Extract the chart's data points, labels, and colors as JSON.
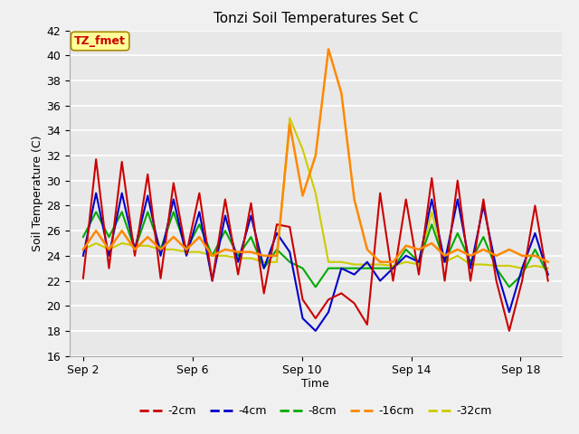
{
  "title": "Tonzi Soil Temperatures Set C",
  "xlabel": "Time",
  "ylabel": "Soil Temperature (C)",
  "ylim": [
    16,
    42
  ],
  "yticks": [
    16,
    18,
    20,
    22,
    24,
    26,
    28,
    30,
    32,
    34,
    36,
    38,
    40,
    42
  ],
  "x_tick_labels": [
    "Sep 2",
    "Sep 6",
    "Sep 10",
    "Sep 14",
    "Sep 18"
  ],
  "x_tick_positions": [
    0,
    4,
    8,
    12,
    16
  ],
  "xlim": [
    -0.5,
    17.5
  ],
  "colors": {
    "-2cm": "#cc0000",
    "-4cm": "#0000cc",
    "-8cm": "#00aa00",
    "-16cm": "#ff8800",
    "-32cm": "#cccc00"
  },
  "legend_label": "TZ_fmet",
  "fig_bg": "#f0f0f0",
  "ax_bg": "#e8e8e8",
  "red": [
    22.2,
    31.7,
    23.0,
    31.5,
    24.0,
    30.5,
    22.2,
    29.8,
    24.2,
    29.0,
    22.0,
    28.5,
    22.5,
    28.2,
    21.0,
    26.5,
    26.3,
    20.5,
    19.0,
    20.5,
    21.0,
    20.2,
    18.5,
    29.0,
    22.0,
    28.5,
    22.5,
    30.2,
    22.0,
    30.0,
    22.0,
    28.5,
    22.0,
    18.0,
    22.0,
    28.0,
    22.0
  ],
  "blue": [
    24.0,
    29.0,
    24.0,
    29.0,
    24.5,
    28.8,
    24.0,
    28.5,
    24.0,
    27.5,
    22.0,
    27.2,
    23.5,
    27.2,
    23.0,
    25.8,
    24.3,
    19.0,
    18.0,
    19.5,
    23.0,
    22.5,
    23.5,
    22.0,
    23.0,
    24.0,
    23.5,
    28.5,
    23.5,
    28.5,
    23.0,
    28.0,
    23.0,
    19.5,
    23.0,
    25.8,
    22.5
  ],
  "green": [
    25.5,
    27.5,
    25.5,
    27.5,
    24.5,
    27.5,
    24.5,
    27.5,
    24.5,
    26.5,
    24.0,
    26.0,
    24.0,
    25.5,
    23.0,
    24.5,
    23.5,
    23.0,
    21.5,
    23.0,
    23.0,
    23.0,
    23.0,
    23.0,
    23.0,
    24.5,
    23.5,
    26.5,
    23.5,
    25.8,
    23.5,
    25.5,
    23.0,
    21.5,
    22.5,
    24.5,
    22.5
  ],
  "orange": [
    24.5,
    26.0,
    24.5,
    26.0,
    24.5,
    25.5,
    24.5,
    25.5,
    24.5,
    25.5,
    24.0,
    24.5,
    24.3,
    24.3,
    24.0,
    24.0,
    34.5,
    28.8,
    32.0,
    40.5,
    37.0,
    28.5,
    24.5,
    23.5,
    23.5,
    24.8,
    24.5,
    25.0,
    24.0,
    24.5,
    24.0,
    24.5,
    24.0,
    24.5,
    24.0,
    24.0,
    23.5
  ],
  "yellow": [
    24.5,
    25.0,
    24.5,
    25.0,
    24.8,
    24.8,
    24.5,
    24.5,
    24.3,
    24.3,
    24.0,
    24.0,
    23.8,
    23.8,
    23.5,
    23.5,
    35.0,
    32.5,
    29.0,
    23.5,
    23.5,
    23.3,
    23.3,
    23.3,
    23.2,
    23.5,
    23.3,
    27.5,
    23.5,
    24.0,
    23.3,
    23.3,
    23.2,
    23.2,
    23.0,
    23.2,
    23.0
  ]
}
